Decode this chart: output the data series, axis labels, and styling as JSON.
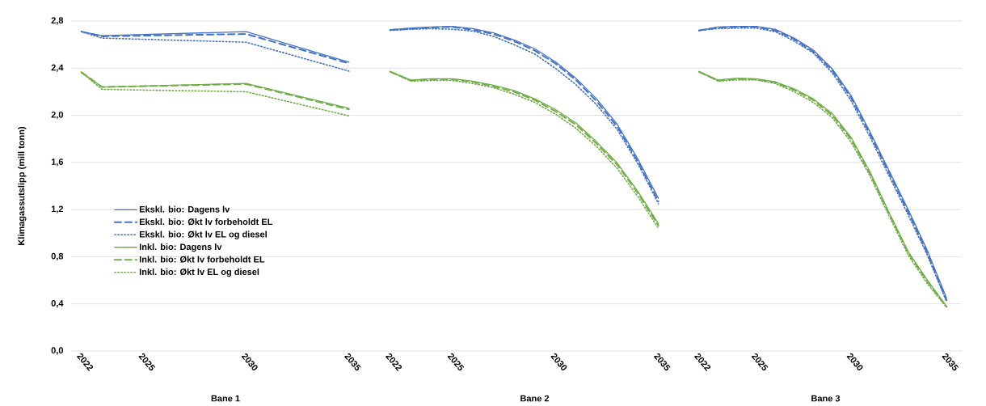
{
  "chart_data": [
    {
      "type": "line",
      "ylabel": "Klimagassutslipp (mill tonn)",
      "xlabel": "Bane 1",
      "x": [
        2022,
        2023,
        2030,
        2035
      ],
      "xlim": [
        2021.5,
        2036.5
      ],
      "xticks": [
        2022,
        2025,
        2030,
        2035
      ],
      "ylim": [
        0,
        2.8
      ],
      "yticks": [
        {
          "value": 0,
          "label": "0,0"
        },
        {
          "value": 0.4,
          "label": "0,4"
        },
        {
          "value": 0.8,
          "label": "0,8"
        },
        {
          "value": 1.2,
          "label": "1,2"
        },
        {
          "value": 1.6,
          "label": "1,6"
        },
        {
          "value": 2.0,
          "label": "2,0"
        },
        {
          "value": 2.4,
          "label": "2,4"
        },
        {
          "value": 2.8,
          "label": "2,8"
        }
      ],
      "grid": "y",
      "legend": "left",
      "series": [
        {
          "name": "Ekskl. bio: Dagens lv",
          "color": "#4472c4",
          "line_style": "solid",
          "values": [
            2.71,
            2.675,
            2.71,
            2.45
          ]
        },
        {
          "name": "Ekskl. bio: Økt lv forbeholdt EL",
          "color": "#4472c4",
          "line_style": "dashed",
          "values": [
            2.71,
            2.67,
            2.69,
            2.44
          ]
        },
        {
          "name": "Ekskl. bio: Økt lv EL og diesel",
          "color": "#4472c4",
          "line_style": "dotted",
          "values": [
            2.71,
            2.655,
            2.62,
            2.375
          ]
        },
        {
          "name": "Inkl. bio: Dagens lv",
          "color": "#70ad47",
          "line_style": "solid",
          "values": [
            2.365,
            2.24,
            2.27,
            2.06
          ]
        },
        {
          "name": "Inkl. bio: Økt lv forbeholdt EL",
          "color": "#70ad47",
          "line_style": "dashed",
          "values": [
            2.365,
            2.24,
            2.265,
            2.05
          ]
        },
        {
          "name": "Inkl. bio: Økt lv EL og diesel",
          "color": "#70ad47",
          "line_style": "dotted",
          "values": [
            2.365,
            2.22,
            2.2,
            1.995
          ]
        }
      ]
    },
    {
      "type": "line",
      "xlabel": "Bane 2",
      "x": [
        2022,
        2023,
        2024,
        2025,
        2026,
        2027,
        2028,
        2029,
        2030,
        2031,
        2032,
        2033,
        2034,
        2035
      ],
      "xlim": [
        2021.5,
        2036.5
      ],
      "xticks": [
        2022,
        2025,
        2030,
        2035
      ],
      "ylim": [
        0,
        2.8
      ],
      "yticks": [
        0,
        0.4,
        0.8,
        1.2,
        1.6,
        2.0,
        2.4,
        2.8
      ],
      "grid": "y",
      "tick_labels": "x",
      "series": [
        {
          "color": "#4472c4",
          "line_style": "solid",
          "values": [
            2.725,
            2.74,
            2.75,
            2.755,
            2.735,
            2.7,
            2.64,
            2.565,
            2.455,
            2.315,
            2.14,
            1.925,
            1.63,
            1.295
          ]
        },
        {
          "color": "#4472c4",
          "line_style": "dashed",
          "values": [
            2.725,
            2.735,
            2.745,
            2.75,
            2.725,
            2.69,
            2.63,
            2.55,
            2.44,
            2.3,
            2.12,
            1.905,
            1.61,
            1.27
          ]
        },
        {
          "color": "#4472c4",
          "line_style": "dotted",
          "values": [
            2.72,
            2.73,
            2.735,
            2.73,
            2.715,
            2.67,
            2.6,
            2.52,
            2.4,
            2.26,
            2.09,
            1.88,
            1.59,
            1.25
          ]
        },
        {
          "color": "#70ad47",
          "line_style": "solid",
          "values": [
            2.37,
            2.3,
            2.31,
            2.31,
            2.29,
            2.255,
            2.21,
            2.14,
            2.05,
            1.935,
            1.775,
            1.595,
            1.355,
            1.08
          ]
        },
        {
          "color": "#70ad47",
          "line_style": "dashed",
          "values": [
            2.37,
            2.295,
            2.305,
            2.305,
            2.285,
            2.245,
            2.2,
            2.13,
            2.035,
            1.92,
            1.76,
            1.58,
            1.34,
            1.065
          ]
        },
        {
          "color": "#70ad47",
          "line_style": "dotted",
          "values": [
            2.37,
            2.29,
            2.295,
            2.295,
            2.27,
            2.235,
            2.18,
            2.11,
            2.01,
            1.89,
            1.735,
            1.55,
            1.31,
            1.04
          ]
        }
      ]
    },
    {
      "type": "line",
      "xlabel": "Bane 3",
      "x": [
        2022,
        2023,
        2024,
        2025,
        2026,
        2027,
        2028,
        2029,
        2030,
        2031,
        2032,
        2033,
        2034,
        2035
      ],
      "xlim": [
        2021.5,
        2035.8
      ],
      "xticks": [
        2022,
        2025,
        2030,
        2035
      ],
      "ylim": [
        0,
        2.8
      ],
      "yticks": [
        0,
        0.4,
        0.8,
        1.2,
        1.6,
        2.0,
        2.4,
        2.8
      ],
      "grid": "y",
      "tick_labels": "x",
      "series": [
        {
          "color": "#4472c4",
          "line_style": "solid",
          "values": [
            2.72,
            2.75,
            2.755,
            2.755,
            2.73,
            2.655,
            2.555,
            2.395,
            2.165,
            1.855,
            1.525,
            1.195,
            0.85,
            0.45
          ]
        },
        {
          "color": "#4472c4",
          "line_style": "dashed",
          "values": [
            2.72,
            2.745,
            2.75,
            2.75,
            2.72,
            2.645,
            2.54,
            2.38,
            2.145,
            1.835,
            1.505,
            1.175,
            0.83,
            0.43
          ]
        },
        {
          "color": "#4472c4",
          "line_style": "dotted",
          "values": [
            2.72,
            2.735,
            2.74,
            2.74,
            2.71,
            2.63,
            2.53,
            2.36,
            2.12,
            1.81,
            1.48,
            1.15,
            0.81,
            0.42
          ]
        },
        {
          "color": "#70ad47",
          "line_style": "solid",
          "values": [
            2.37,
            2.3,
            2.315,
            2.31,
            2.285,
            2.225,
            2.14,
            2.015,
            1.81,
            1.515,
            1.17,
            0.84,
            0.6,
            0.38
          ]
        },
        {
          "color": "#70ad47",
          "line_style": "dashed",
          "values": [
            2.37,
            2.295,
            2.31,
            2.305,
            2.28,
            2.215,
            2.13,
            2.0,
            1.795,
            1.5,
            1.16,
            0.83,
            0.59,
            0.375
          ]
        },
        {
          "color": "#70ad47",
          "line_style": "dotted",
          "values": [
            2.37,
            2.29,
            2.3,
            2.3,
            2.27,
            2.2,
            2.11,
            1.98,
            1.77,
            1.48,
            1.14,
            0.81,
            0.57,
            0.37
          ]
        }
      ]
    }
  ]
}
